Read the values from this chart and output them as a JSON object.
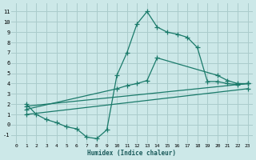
{
  "xlabel": "Humidex (Indice chaleur)",
  "bg_color": "#cce8e8",
  "grid_color": "#aacccc",
  "line_color": "#1a7a6a",
  "xlim": [
    -0.5,
    23.5
  ],
  "ylim": [
    -1.8,
    11.8
  ],
  "xticks": [
    0,
    1,
    2,
    3,
    4,
    5,
    6,
    7,
    8,
    9,
    10,
    11,
    12,
    13,
    14,
    15,
    16,
    17,
    18,
    19,
    20,
    21,
    22,
    23
  ],
  "yticks": [
    -1,
    0,
    1,
    2,
    3,
    4,
    5,
    6,
    7,
    8,
    9,
    10,
    11
  ],
  "series": [
    {
      "x": [
        1,
        2,
        3,
        4,
        5,
        6,
        7,
        8,
        9,
        10,
        11,
        12,
        13,
        14,
        15,
        16,
        17,
        18,
        19,
        20,
        21,
        22,
        23
      ],
      "y": [
        2.0,
        1.0,
        0.5,
        0.2,
        -0.2,
        -0.4,
        -1.2,
        -1.35,
        -0.5,
        4.8,
        7.0,
        9.8,
        11.0,
        9.5,
        9.0,
        8.8,
        8.5,
        7.5,
        4.2,
        4.2,
        4.0,
        3.9,
        4.0
      ]
    },
    {
      "x": [
        1,
        10,
        11,
        12,
        13,
        14,
        20,
        21,
        22,
        23
      ],
      "y": [
        1.5,
        3.5,
        3.8,
        4.0,
        4.3,
        6.5,
        4.8,
        4.3,
        4.0,
        4.0
      ]
    },
    {
      "x": [
        1,
        23
      ],
      "y": [
        1.0,
        3.5
      ]
    },
    {
      "x": [
        1,
        23
      ],
      "y": [
        1.8,
        4.0
      ]
    }
  ]
}
